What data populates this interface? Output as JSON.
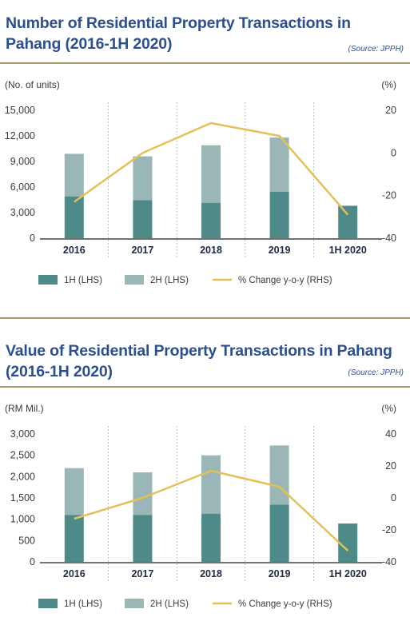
{
  "chart_data": [
    {
      "type": "bar",
      "title": "Number of Residential Property Transactions in Pahang (2016-1H 2020)",
      "source": "(Source: JPPH)",
      "ylabel_left": "(No. of units)",
      "ylabel_right": "(%)",
      "categories": [
        "2016",
        "2017",
        "2018",
        "2019",
        "1H 2020"
      ],
      "ylim_left": [
        0,
        15000
      ],
      "yticks_left": [
        "15,000",
        "12,000",
        "9,000",
        "6,000",
        "3,000",
        "0"
      ],
      "yticks_left_values": [
        15000,
        12000,
        9000,
        6000,
        3000,
        0
      ],
      "ylim_right": [
        -40,
        20
      ],
      "yticks_right": [
        "20",
        "0",
        "-20",
        "-40"
      ],
      "yticks_right_values": [
        20,
        0,
        -20,
        -40
      ],
      "stacked": true,
      "series": [
        {
          "name": "1H (LHS)",
          "type": "bar",
          "axis": "left",
          "values": [
            4900,
            4450,
            4150,
            5450,
            3800
          ]
        },
        {
          "name": "2H (LHS)",
          "type": "bar",
          "axis": "left",
          "values": [
            5000,
            5150,
            6750,
            6350,
            null
          ]
        },
        {
          "name": "% Change y-o-y (RHS)",
          "type": "line",
          "axis": "right",
          "values": [
            -23,
            0,
            14,
            8,
            -29
          ]
        }
      ],
      "colors": {
        "1H": "#4e8a88",
        "2H": "#9bb6b6",
        "line": "#e2c257",
        "grid": "#a9c3e0",
        "axis": "#444444",
        "text": "#2b4f8f"
      },
      "grid": "vertical-dotted",
      "legend_position": "bottom"
    },
    {
      "type": "bar",
      "title": "Value of Residential Property Transactions in Pahang (2016-1H 2020)",
      "source": "(Source: JPPH)",
      "ylabel_left": "(RM Mil.)",
      "ylabel_right": "(%)",
      "categories": [
        "2016",
        "2017",
        "2018",
        "2019",
        "1H 2020"
      ],
      "ylim_left": [
        0,
        3000
      ],
      "yticks_left": [
        "3,000",
        "2,500",
        "2,000",
        "1,500",
        "1,000",
        "500",
        "0"
      ],
      "yticks_left_values": [
        3000,
        2500,
        2000,
        1500,
        1000,
        500,
        0
      ],
      "ylim_right": [
        -40,
        40
      ],
      "yticks_right": [
        "40",
        "20",
        "0",
        "-20",
        "-40"
      ],
      "yticks_right_values": [
        40,
        20,
        0,
        -20,
        -40
      ],
      "stacked": true,
      "series": [
        {
          "name": "1H (LHS)",
          "type": "bar",
          "axis": "left",
          "values": [
            1100,
            1100,
            1130,
            1340,
            900
          ]
        },
        {
          "name": "2H (LHS)",
          "type": "bar",
          "axis": "left",
          "values": [
            1100,
            1000,
            1370,
            1390,
            null
          ]
        },
        {
          "name": "% Change y-o-y (RHS)",
          "type": "line",
          "axis": "right",
          "values": [
            -13,
            0,
            17,
            7,
            -33
          ]
        }
      ],
      "colors": {
        "1H": "#4e8a88",
        "2H": "#9bb6b6",
        "line": "#e2c257",
        "grid": "#a9c3e0",
        "axis": "#444444",
        "text": "#2b4f8f"
      },
      "grid": "vertical-dotted",
      "legend_position": "bottom"
    }
  ]
}
